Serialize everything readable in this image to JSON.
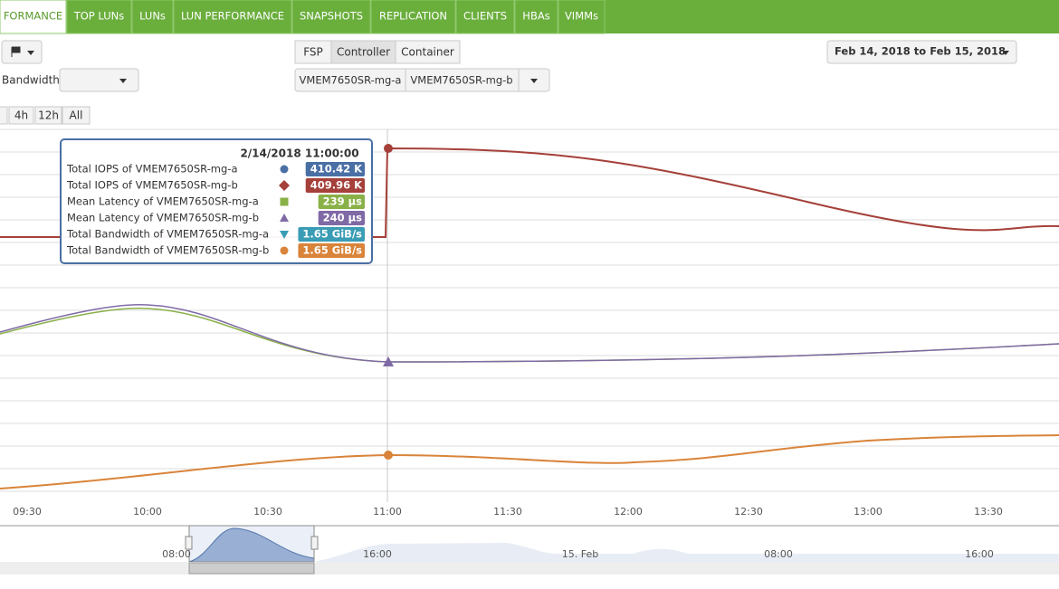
{
  "nav": {
    "tabs": [
      "FORMANCE",
      "TOP LUNs",
      "LUNs",
      "LUN PERFORMANCE",
      "SNAPSHOTS",
      "REPLICATION",
      "CLIENTS",
      "HBAs",
      "VIMMs"
    ]
  },
  "controls": {
    "metric": "Bandwidth",
    "view_buttons": [
      "FSP",
      "Controller",
      "Container"
    ],
    "controllers": [
      "VMEM7650SR-mg-a",
      "VMEM7650SR-mg-b"
    ],
    "date_range": "Feb 14, 2018 to Feb 15, 2018",
    "zoom": [
      "4h",
      "12h",
      "All"
    ]
  },
  "tooltip": {
    "title": "2/14/2018 11:00:00",
    "rows": [
      {
        "label": "Total IOPS of VMEM7650SR-mg-a",
        "value": "410.42 K",
        "color": "#4a6fa5"
      },
      {
        "label": "Total IOPS of VMEM7650SR-mg-b",
        "value": "409.96 K",
        "color": "#a5403a"
      },
      {
        "label": "Mean Latency of VMEM7650SR-mg-a",
        "value": "239 µs",
        "color": "#8ab048"
      },
      {
        "label": "Mean Latency of VMEM7650SR-mg-b",
        "value": "240 µs",
        "color": "#7f6aa6"
      },
      {
        "label": "Total Bandwidth of VMEM7650SR-mg-a",
        "value": "1.65 GiB/s",
        "color": "#3a9cb5"
      },
      {
        "label": "Total Bandwidth of VMEM7650SR-mg-b",
        "value": "1.65 GiB/s",
        "color": "#d9843a"
      }
    ]
  },
  "x_axis": {
    "ticks": [
      "09:30",
      "10:00",
      "10:30",
      "11:00",
      "11:30",
      "12:00",
      "12:30",
      "13:00",
      "13:30"
    ]
  },
  "navigator": {
    "ticks": [
      "08:00",
      "16:00",
      "15. Feb",
      "08:00",
      "16:00"
    ]
  }
}
